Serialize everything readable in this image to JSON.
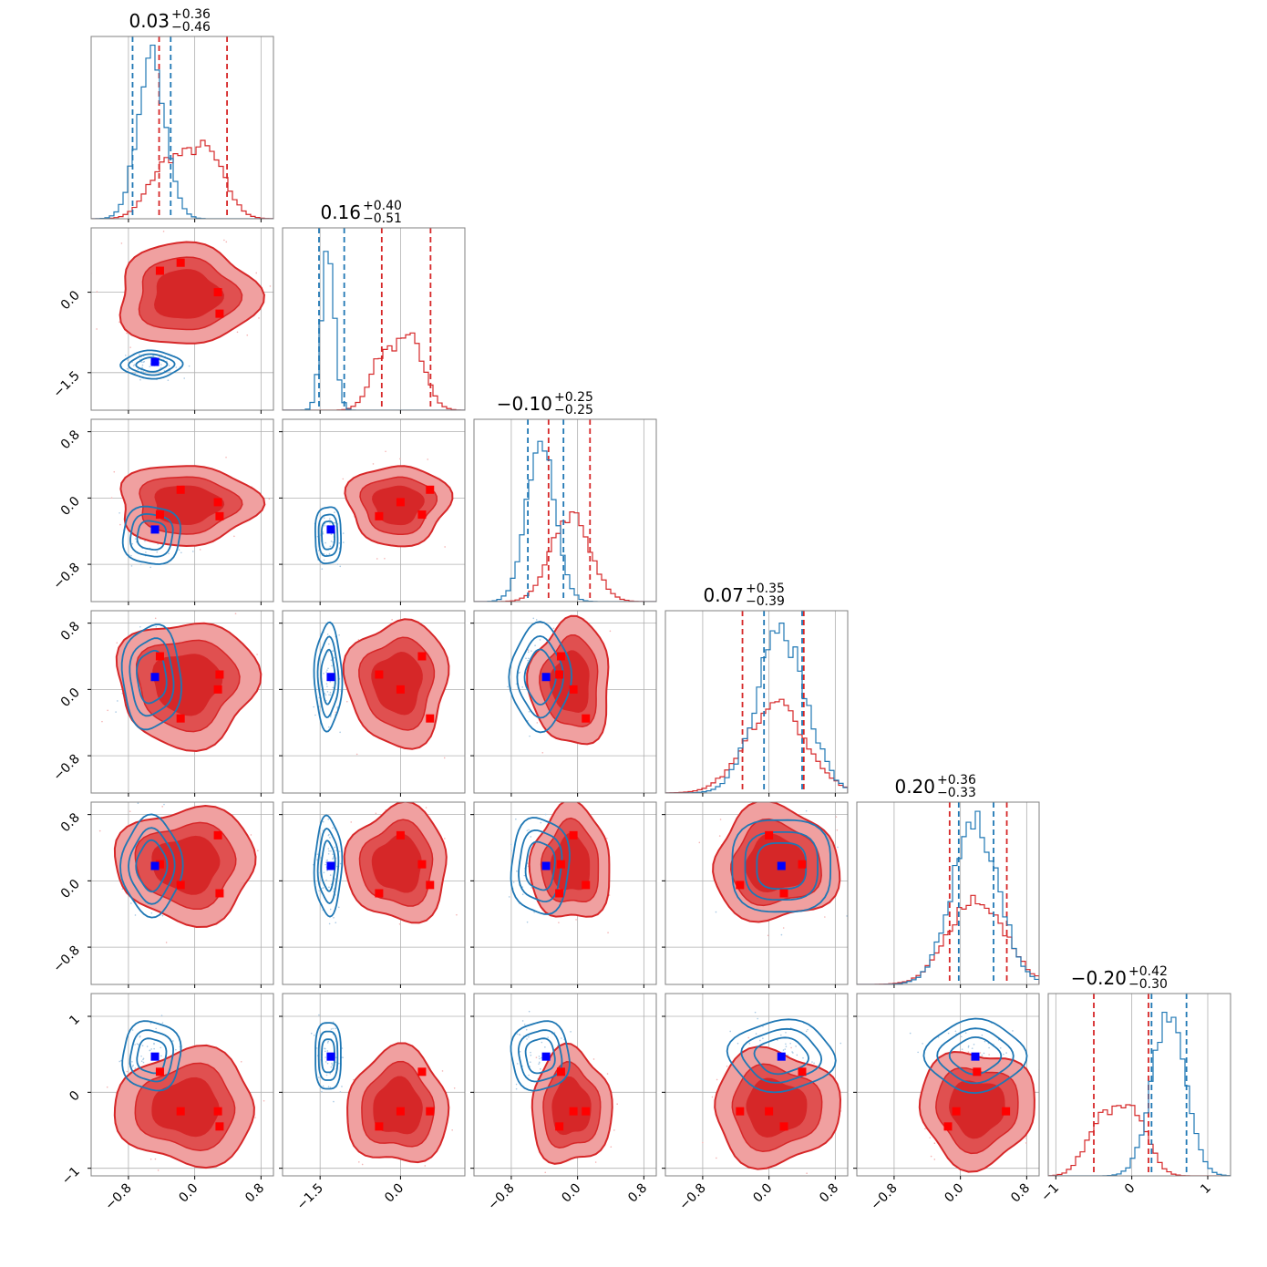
{
  "colors": {
    "series_a": "#1f77b4",
    "series_b": "#d62728",
    "marker_a": "#0000ff",
    "marker_b": "#ff0000",
    "fill_b_outer": "#f0a0a0",
    "fill_b_inner": "#e05050",
    "fill_b_core": "#d62728"
  },
  "chart_data": {
    "type": "corner",
    "n_params": 6,
    "grid": true,
    "titles": [
      {
        "value": "0.03",
        "plus": "+0.36",
        "minus": "−0.46"
      },
      {
        "value": "0.16",
        "plus": "+0.40",
        "minus": "−0.51"
      },
      {
        "value": "−0.10",
        "plus": "+0.25",
        "minus": "−0.25"
      },
      {
        "value": "0.07",
        "plus": "+0.35",
        "minus": "−0.39"
      },
      {
        "value": "0.20",
        "plus": "+0.36",
        "minus": "−0.33"
      },
      {
        "value": "−0.20",
        "plus": "+0.42",
        "minus": "−0.30"
      }
    ],
    "ranges": [
      [
        -1.25,
        0.95
      ],
      [
        -2.2,
        1.2
      ],
      [
        -1.25,
        0.95
      ],
      [
        -1.25,
        0.95
      ],
      [
        -1.25,
        0.95
      ],
      [
        -1.1,
        1.3
      ]
    ],
    "ticks": [
      {
        "values": [
          -0.8,
          0.0,
          0.8
        ],
        "labels": [
          "−0.8",
          "0.0",
          "0.8"
        ]
      },
      {
        "values": [
          -1.5,
          0.0
        ],
        "labels": [
          "−1.5",
          "0.0"
        ]
      },
      {
        "values": [
          -0.8,
          0.0,
          0.8
        ],
        "labels": [
          "−0.8",
          "0.0",
          "0.8"
        ]
      },
      {
        "values": [
          -0.8,
          0.0,
          0.8
        ],
        "labels": [
          "−0.8",
          "0.0",
          "0.8"
        ]
      },
      {
        "values": [
          -0.8,
          0.0,
          0.8
        ],
        "labels": [
          "−0.8",
          "0.0",
          "0.8"
        ]
      },
      {
        "values": [
          -1,
          0,
          1
        ],
        "labels": [
          "−1",
          "0",
          "1"
        ]
      }
    ],
    "series": [
      {
        "id": "a",
        "means": [
          -0.52,
          -1.35,
          -0.45,
          0.15,
          0.18,
          0.48
        ],
        "sd": [
          0.17,
          0.12,
          0.17,
          0.3,
          0.28,
          0.22
        ],
        "quantiles": [
          [
            -0.75,
            -0.29
          ],
          [
            -1.52,
            -1.05
          ],
          [
            -0.6,
            -0.17
          ],
          [
            -0.06,
            0.4
          ],
          [
            -0.02,
            0.4
          ],
          [
            0.26,
            0.72
          ]
        ],
        "markers": [
          -0.48,
          -1.3,
          -0.38,
          0.15,
          0.18,
          0.47
        ]
      },
      {
        "id": "b",
        "means": [
          -0.1,
          -0.05,
          -0.08,
          0.08,
          0.2,
          -0.2
        ],
        "sd": [
          0.4,
          0.45,
          0.23,
          0.36,
          0.33,
          0.36
        ],
        "quantiles": [
          [
            -0.43,
            0.39
          ],
          [
            -0.35,
            0.56
          ],
          [
            -0.35,
            0.15
          ],
          [
            -0.32,
            0.42
          ],
          [
            -0.13,
            0.56
          ],
          [
            -0.5,
            0.22
          ]
        ],
        "markers": [
          [
            -0.42,
            0.4,
            -0.2,
            0.4,
            0.2,
            0.27
          ],
          [
            -0.17,
            0.55,
            0.1,
            -0.35,
            -0.05,
            -0.25
          ],
          [
            0.28,
            0.0,
            -0.05,
            0.0,
            0.55,
            -0.25
          ],
          [
            0.3,
            -0.4,
            -0.22,
            0.18,
            -0.15,
            -0.45
          ]
        ]
      }
    ]
  }
}
